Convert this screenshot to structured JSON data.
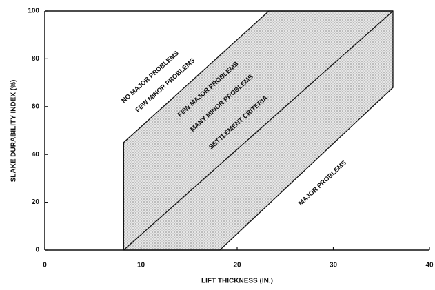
{
  "chart_data": {
    "type": "line",
    "x_label": "LIFT THICKNESS (IN.)",
    "y_label": "SLAKE DURABILITY INDEX (%)",
    "xlim": [
      0,
      40
    ],
    "ylim": [
      0,
      100
    ],
    "xticks": [
      0,
      10,
      20,
      30,
      40
    ],
    "yticks": [
      0,
      20,
      40,
      60,
      80,
      100
    ],
    "series": [
      {
        "color": "#111111",
        "fill": "stipple",
        "x": [
          8.2,
          8.2,
          23.3,
          36.2,
          36.2,
          18.2
        ],
        "values": [
          0,
          45,
          100,
          100,
          68,
          0
        ]
      },
      {
        "color": "#111111",
        "x": [
          8.2,
          36.2
        ],
        "values": [
          0,
          100
        ]
      }
    ],
    "annotations": [
      "NO MAJOR PROBLEMS",
      "FEW MINOR PROBLEMS",
      "FEW MAJOR PROBLEMS",
      "MANY MINOR PROBLEMS",
      "SETTLEMENT CRITERIA",
      "MAJOR PROBLEMS"
    ]
  }
}
